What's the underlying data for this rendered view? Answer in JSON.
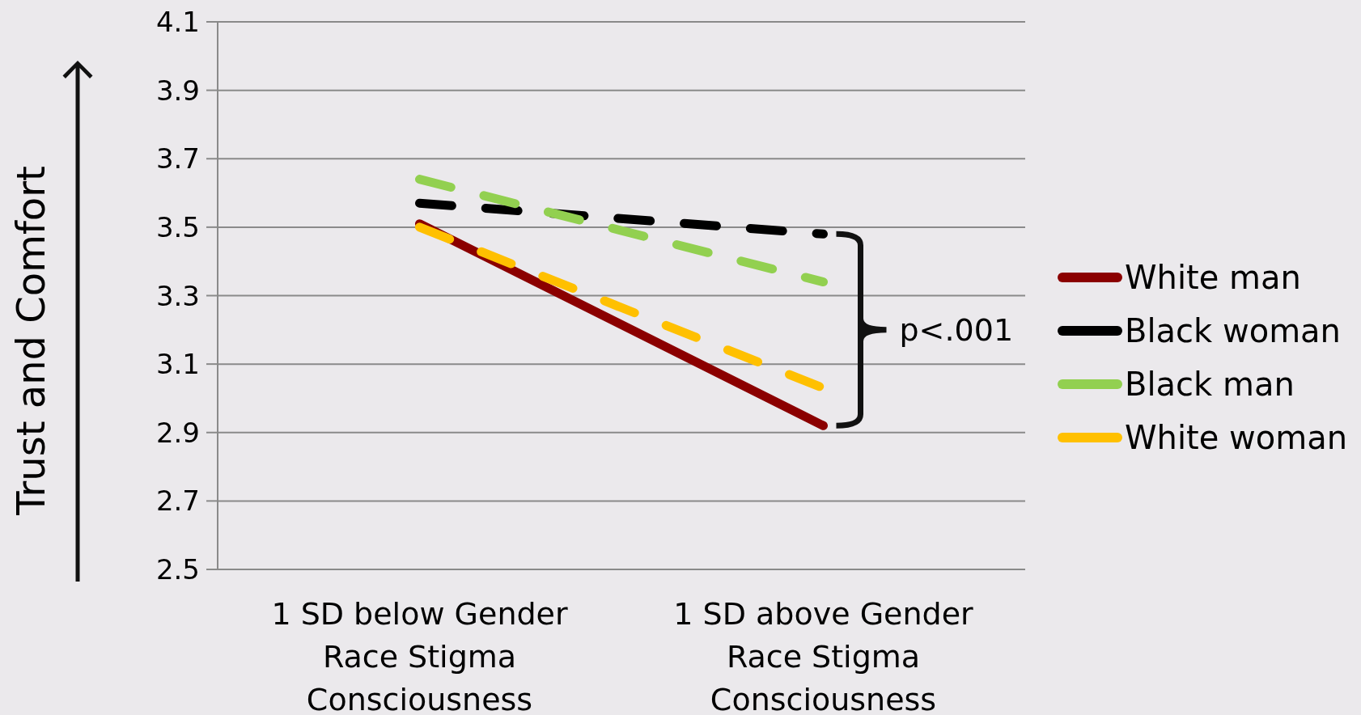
{
  "chart_data": {
    "type": "line",
    "ylabel": "Trust and Comfort",
    "categories": [
      "1 SD below Gender Race Stigma Consciousness",
      "1 SD above Gender Race Stigma Consciousness"
    ],
    "series": [
      {
        "name": "White man",
        "color": "#8b0000",
        "values": [
          3.51,
          2.92
        ],
        "line_style": "solid"
      },
      {
        "name": "Black woman",
        "color": "#000000",
        "values": [
          3.57,
          3.48
        ],
        "line_style": "dashed"
      },
      {
        "name": "Black man",
        "color": "#92d050",
        "values": [
          3.64,
          3.34
        ],
        "line_style": "dashed"
      },
      {
        "name": "White woman",
        "color": "#ffc000",
        "values": [
          3.5,
          3.03
        ],
        "line_style": "dashed"
      }
    ],
    "ylim": [
      2.5,
      4.1
    ],
    "yticks": [
      2.5,
      2.7,
      2.9,
      3.1,
      3.3,
      3.5,
      3.7,
      3.9,
      4.1
    ],
    "grid": "y",
    "legend": "right",
    "marker": "none",
    "annotations": [
      "p<.001"
    ]
  }
}
